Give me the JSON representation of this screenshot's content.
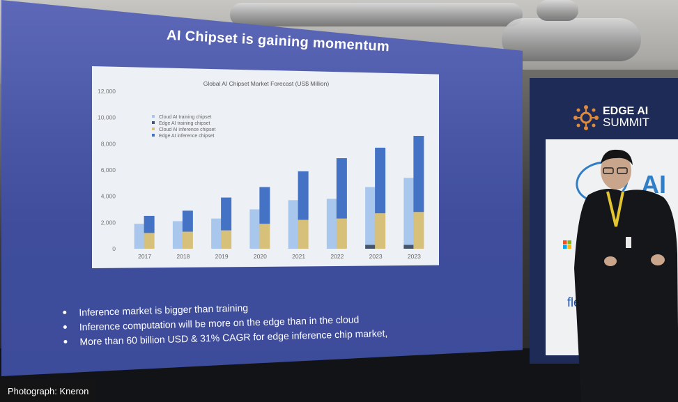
{
  "slide": {
    "title": "AI Chipset is gaining momentum",
    "bullets": [
      "Inference market is bigger than training",
      "Inference computation will be more on the edge than in the cloud",
      "More than 60 billion USD &  31% CAGR for edge inference chip market,"
    ]
  },
  "chart_data": {
    "type": "bar",
    "title": "Global AI Chipset Market Forecast (US$ Million)",
    "categories": [
      "2017",
      "2018",
      "2019",
      "2020",
      "2021",
      "2022",
      "2023",
      "2023"
    ],
    "y_tick_labels": [
      "0",
      "2,000",
      "4,000",
      "6,000",
      "8,000",
      "10,000",
      "12,000"
    ],
    "ylim": [
      0,
      12000
    ],
    "legend_position": "top-left",
    "series": [
      {
        "name": "Cloud AI training chipset",
        "group": "training",
        "stack_order": 1,
        "color": "#a9c6ec",
        "values": [
          1900,
          2100,
          2300,
          3000,
          3700,
          3800,
          4400,
          5100
        ]
      },
      {
        "name": "Edge AI training chipset",
        "group": "training",
        "stack_order": 0,
        "color": "#44546a",
        "values": [
          0,
          0,
          0,
          0,
          0,
          0,
          300,
          300
        ]
      },
      {
        "name": "Cloud AI inference chipset",
        "group": "inference",
        "stack_order": 0,
        "color": "#d6c07a",
        "values": [
          1200,
          1300,
          1400,
          1900,
          2200,
          2300,
          2700,
          2800
        ]
      },
      {
        "name": "Edge AI inference chipset",
        "group": "inference",
        "stack_order": 1,
        "color": "#4472c4",
        "values": [
          1300,
          1600,
          2500,
          2800,
          3700,
          4600,
          5000,
          5800
        ]
      }
    ]
  },
  "banner": {
    "brand_line1": "EDGE AI",
    "brand_line2": "SUMMIT",
    "sponsor_ai": "AI",
    "sponsor_flex": "flexl"
  },
  "caption": "Photograph: Kneron",
  "colors": {
    "screen": "#4a57a7",
    "banner": "#1f2b57",
    "logo_accent": "#e08a3a",
    "intel_blue": "#2f7ec6"
  }
}
